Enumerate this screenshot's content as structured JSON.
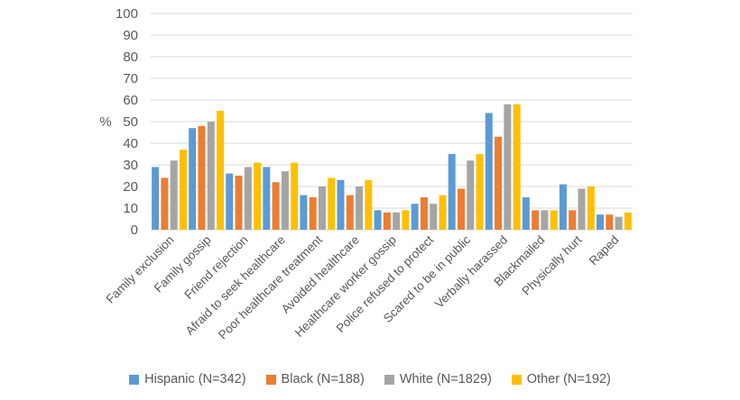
{
  "chart_data": {
    "type": "bar",
    "title": "",
    "ylabel": "%",
    "xlabel": "",
    "ylim": [
      0,
      100
    ],
    "ytick_step": 10,
    "grid": "horizontal",
    "legend_position": "bottom",
    "axis_text_color": "#595959",
    "gridline_color": "#d9d9d9",
    "categories": [
      "Family exclusion",
      "Family gossip",
      "Friend rejection",
      "Afraid to seek healthcare",
      "Poor healthcare treatment",
      "Avoided healthcare",
      "Healthcare worker gossip",
      "Police refused to protect",
      "Scared to be in public",
      "Verbally harassed",
      "Blackmailed",
      "Physically hurt",
      "Raped"
    ],
    "series": [
      {
        "name": "Hispanic (N=342)",
        "color": "#5b9bd5",
        "values": [
          29,
          47,
          26,
          29,
          16,
          23,
          9,
          12,
          35,
          54,
          15,
          21,
          7
        ]
      },
      {
        "name": "Black (N=188)",
        "color": "#ed7d31",
        "values": [
          24,
          48,
          25,
          22,
          15,
          16,
          8,
          15,
          19,
          43,
          9,
          9,
          7
        ]
      },
      {
        "name": "White (N=1829)",
        "color": "#a5a5a5",
        "values": [
          32,
          50,
          29,
          27,
          20,
          20,
          8,
          12,
          32,
          58,
          9,
          19,
          6
        ]
      },
      {
        "name": "Other (N=192)",
        "color": "#ffc000",
        "values": [
          37,
          55,
          31,
          31,
          24,
          23,
          9,
          16,
          35,
          58,
          9,
          20,
          8
        ]
      }
    ]
  }
}
